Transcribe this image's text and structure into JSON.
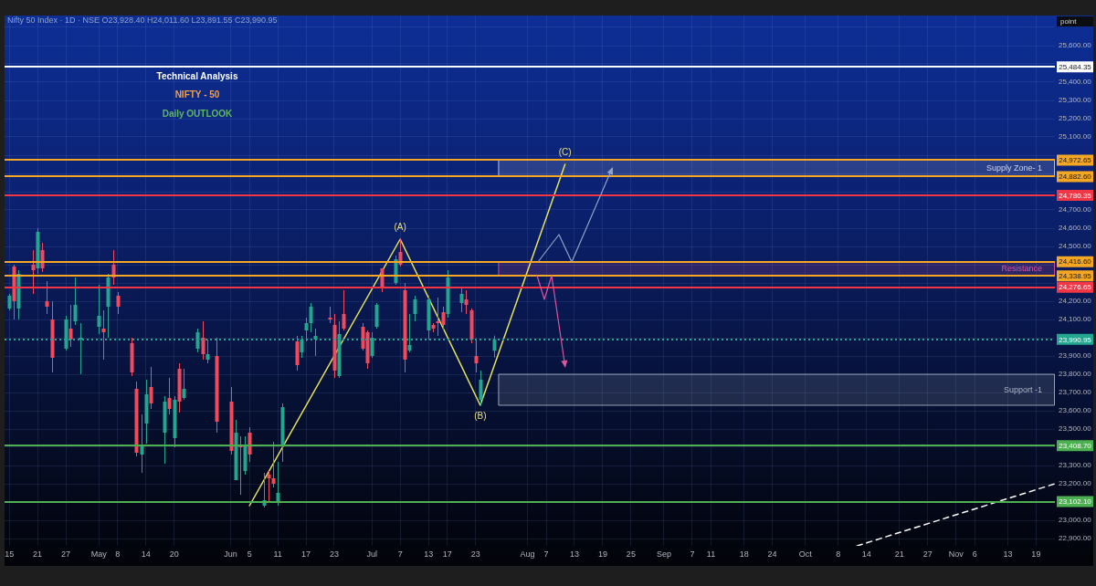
{
  "chart_data": {
    "type": "candlestick",
    "title": "Technical Analysis",
    "subtitle": "NIFTY - 50",
    "ylabel": "point",
    "annotations": [
      "Nifty 50 Index · 1D · NSE O23,928.40 H24,011.60 L23,891.55 C23,990.95",
      "Daily OUTLOOK",
      {
        "text": "(A)",
        "x": "--07-07",
        "y": 24540
      },
      {
        "text": "(B)",
        "x": "--07-24",
        "y": 23630
      },
      {
        "text": "(C)",
        "x": "--08-11",
        "y": 24950
      }
    ],
    "x": [
      "--04-15",
      "--04-16",
      "--04-17",
      "--04-20",
      "--04-21",
      "--04-22",
      "--04-23",
      "--04-24",
      "--04-27",
      "--04-28",
      "--04-29",
      "--04-30",
      "--05-04",
      "--05-05",
      "--05-06",
      "--05-07",
      "--05-08",
      "--05-11",
      "--05-12",
      "--05-13",
      "--05-14",
      "--05-15",
      "--05-18",
      "--05-19",
      "--05-20",
      "--05-21",
      "--05-22",
      "--05-25",
      "--05-26",
      "--05-27",
      "--05-29",
      "--06-01",
      "--06-02",
      "--06-03",
      "--06-04",
      "--06-05",
      "--06-08",
      "--06-09",
      "--06-10",
      "--06-11",
      "--06-12",
      "--06-15",
      "--06-16",
      "--06-17",
      "--06-18",
      "--06-19",
      "--06-22",
      "--06-23",
      "--06-24",
      "--06-25",
      "--06-29",
      "--06-30",
      "--07-01",
      "--07-02",
      "--07-03",
      "--07-06",
      "--07-07",
      "--07-08",
      "--07-09",
      "--07-10",
      "--07-13",
      "--07-14",
      "--07-15",
      "--07-16",
      "--07-17",
      "--07-20",
      "--07-21",
      "--07-22",
      "--07-23",
      "--07-24",
      "--07-27"
    ],
    "ohlc": [
      [
        24160,
        24240,
        24150,
        24230
      ],
      [
        24390,
        24400,
        24100,
        24200
      ],
      [
        24160,
        24370,
        24100,
        24350
      ],
      [
        24400,
        24480,
        24240,
        24370
      ],
      [
        24380,
        24600,
        24350,
        24580
      ],
      [
        24480,
        24520,
        24360,
        24380
      ],
      [
        24200,
        24310,
        24130,
        24170
      ],
      [
        24100,
        24200,
        23810,
        23890
      ],
      [
        23940,
        24120,
        23930,
        24100
      ],
      [
        24050,
        24180,
        23950,
        23990
      ],
      [
        24090,
        24330,
        24070,
        24180
      ],
      [
        23990,
        24080,
        23800,
        24000
      ],
      [
        24060,
        24290,
        24020,
        24120
      ],
      [
        24050,
        24150,
        23880,
        24030
      ],
      [
        24170,
        24350,
        24000,
        24330
      ],
      [
        24400,
        24480,
        24290,
        24330
      ],
      [
        24230,
        24250,
        24130,
        24170
      ],
      [
        23970,
        24000,
        23790,
        23810
      ],
      [
        23720,
        23760,
        23350,
        23370
      ],
      [
        23360,
        23580,
        23260,
        23410
      ],
      [
        23530,
        23770,
        23420,
        23690
      ],
      [
        23730,
        23840,
        23610,
        23640
      ],
      [
        23480,
        23680,
        23310,
        23650
      ],
      [
        23670,
        23780,
        23580,
        23610
      ],
      [
        23450,
        23680,
        23400,
        23660
      ],
      [
        23830,
        23860,
        23590,
        23650
      ],
      [
        23670,
        23830,
        23660,
        23720
      ],
      [
        23940,
        24050,
        23920,
        24030
      ],
      [
        24000,
        24090,
        23880,
        23910
      ],
      [
        23880,
        23990,
        23860,
        23910
      ],
      [
        23900,
        24000,
        23480,
        23540
      ],
      [
        23650,
        23730,
        23360,
        23380
      ],
      [
        23220,
        23550,
        23220,
        23480
      ],
      [
        23410,
        23460,
        23140,
        23400
      ],
      [
        23270,
        23460,
        23250,
        23410
      ],
      [
        23480,
        23510,
        23320,
        23360
      ],
      [
        23080,
        23260,
        23070,
        23110
      ],
      [
        23250,
        23270,
        23100,
        23230
      ],
      [
        23230,
        23430,
        23180,
        23200
      ],
      [
        23100,
        23320,
        23080,
        23150
      ],
      [
        23410,
        23640,
        23320,
        23620
      ],
      [
        23980,
        24010,
        23820,
        23850
      ],
      [
        23920,
        24010,
        23890,
        23990
      ],
      [
        24040,
        24110,
        23980,
        24080
      ],
      [
        24080,
        24190,
        24030,
        24170
      ],
      [
        23990,
        24050,
        23900,
        24010
      ],
      [
        24110,
        24170,
        24080,
        24100
      ],
      [
        24070,
        24130,
        23780,
        23820
      ],
      [
        23790,
        24090,
        23780,
        24020
      ],
      [
        24130,
        24260,
        24040,
        24050
      ],
      [
        24060,
        24080,
        23930,
        23940
      ],
      [
        24030,
        24040,
        23830,
        23860
      ],
      [
        23900,
        24030,
        23890,
        24000
      ],
      [
        24060,
        24190,
        24050,
        24180
      ],
      [
        24380,
        24380,
        24250,
        24270
      ],
      [
        24300,
        24450,
        24290,
        24430
      ],
      [
        24470,
        24540,
        24390,
        24400
      ],
      [
        24260,
        24300,
        23810,
        23880
      ],
      [
        23930,
        24130,
        23920,
        23960
      ],
      [
        24130,
        24230,
        24090,
        24210
      ],
      [
        24040,
        24230,
        23990,
        24210
      ],
      [
        24070,
        24080,
        24030,
        24050
      ],
      [
        24090,
        24220,
        24010,
        24080
      ],
      [
        24140,
        24170,
        24040,
        24070
      ],
      [
        24130,
        24370,
        24110,
        24330
      ],
      [
        24190,
        24270,
        24140,
        24240
      ],
      [
        24210,
        24260,
        24130,
        24180
      ],
      [
        24150,
        24160,
        23970,
        23990
      ],
      [
        23900,
        23990,
        23810,
        23860
      ],
      [
        23660,
        23820,
        23630,
        23770
      ],
      [
        23928.4,
        24011.6,
        23891.55,
        23990.95
      ]
    ],
    "colors": [
      "#22a68f",
      "#f2495c",
      "#22a68f",
      "#f2495c",
      "#22a68f",
      "#f2495c",
      "#f2495c",
      "#f2495c",
      "#22a68f",
      "#f2495c",
      "#22a68f",
      "#22a68f",
      "#22a68f",
      "#f2495c",
      "#22a68f",
      "#f2495c",
      "#f2495c",
      "#f2495c",
      "#f2495c",
      "#22a68f",
      "#22a68f",
      "#f2495c",
      "#22a68f",
      "#f2495c",
      "#22a68f",
      "#f2495c",
      "#22a68f",
      "#22a68f",
      "#f2495c",
      "#22a68f",
      "#f2495c",
      "#f2495c",
      "#22a68f",
      "#f2495c",
      "#22a68f",
      "#f2495c",
      "#22a68f",
      "#f2495c",
      "#f2495c",
      "#22a68f",
      "#22a68f",
      "#f2495c",
      "#22a68f",
      "#22a68f",
      "#22a68f",
      "#22a68f",
      "#f2495c",
      "#f2495c",
      "#22a68f",
      "#f2495c",
      "#f2495c",
      "#f2495c",
      "#22a68f",
      "#22a68f",
      "#f2495c",
      "#22a68f",
      "#f2495c",
      "#f2495c",
      "#22a68f",
      "#22a68f",
      "#22a68f",
      "#f2495c",
      "#f2495c",
      "#f2495c",
      "#22a68f",
      "#22a68f",
      "#f2495c",
      "#f2495c",
      "#f2495c",
      "#22a68f",
      "#22a68f"
    ],
    "series": [
      {
        "type": "line",
        "color": "#e6e35a",
        "x": [
          "--06-05",
          "--07-07",
          "--07-24",
          "--08-11"
        ],
        "values": [
          23080,
          24540,
          23630,
          24950
        ]
      },
      {
        "type": "line",
        "color": "#ffffff",
        "line_style": "dashed",
        "x": [
          "--10-12",
          "--11-23"
        ],
        "values": [
          22860,
          23200
        ]
      }
    ],
    "ref_lines": [
      {
        "axis": "y",
        "value": 25484.35,
        "label": "25,484.35",
        "color": "#ffffff"
      },
      {
        "axis": "y",
        "value": 24972.65,
        "label": "24,972.65",
        "color": "#f5a623"
      },
      {
        "axis": "y",
        "value": 24882.6,
        "label": "24,882.60",
        "color": "#f5a623"
      },
      {
        "axis": "y",
        "value": 24780.35,
        "label": "24,780.35",
        "color": "#f23645"
      },
      {
        "axis": "y",
        "value": 24416.6,
        "label": "24,416.60",
        "color": "#f5a623"
      },
      {
        "axis": "y",
        "value": 24338.95,
        "label": "24,338.95",
        "color": "#f5a623"
      },
      {
        "axis": "y",
        "value": 24276.65,
        "label": "24,276.65",
        "color": "#f23645"
      },
      {
        "axis": "y",
        "value": 23990.95,
        "label": "23,990.95",
        "color": "#22a68f",
        "line_style": "dotted"
      },
      {
        "axis": "y",
        "value": 23408.7,
        "label": "23,408.70",
        "color": "#4caf50"
      },
      {
        "axis": "y",
        "value": 23102.1,
        "label": "23,102.10",
        "color": "#4caf50"
      }
    ],
    "bands": [
      {
        "axis": "y",
        "from": 24882.6,
        "to": 24972.65,
        "label": "Supply Zone- 1",
        "color": "#c9d3ea"
      },
      {
        "axis": "y",
        "from": 24338.95,
        "to": 24416.6,
        "label": "Resistance",
        "color": "#e0559f"
      },
      {
        "axis": "y",
        "from": 23630,
        "to": 23800,
        "label": "Support -1",
        "color": "#aab4c8"
      }
    ],
    "xlim": [
      "--04-14",
      "--11-23"
    ],
    "xticks": [
      {
        "value": "--04-15",
        "label": "15"
      },
      {
        "value": "--04-21",
        "label": "21"
      },
      {
        "value": "--04-27",
        "label": "27"
      },
      {
        "value": "--05-04",
        "label": "May"
      },
      {
        "value": "--05-08",
        "label": "8"
      },
      {
        "value": "--05-14",
        "label": "14"
      },
      {
        "value": "--05-20",
        "label": "20"
      },
      {
        "value": "--06-01",
        "label": "Jun"
      },
      {
        "value": "--06-05",
        "label": "5"
      },
      {
        "value": "--06-11",
        "label": "11"
      },
      {
        "value": "--06-17",
        "label": "17"
      },
      {
        "value": "--06-23",
        "label": "23"
      },
      {
        "value": "--07-01",
        "label": "Jul"
      },
      {
        "value": "--07-07",
        "label": "7"
      },
      {
        "value": "--07-13",
        "label": "13"
      },
      {
        "value": "--07-17",
        "label": "17"
      },
      {
        "value": "--07-23",
        "label": "23"
      },
      {
        "value": "--08-03",
        "label": "Aug"
      },
      {
        "value": "--08-07",
        "label": "7"
      },
      {
        "value": "--08-13",
        "label": "13"
      },
      {
        "value": "--08-19",
        "label": "19"
      },
      {
        "value": "--08-25",
        "label": "25"
      },
      {
        "value": "--09-01",
        "label": "Sep"
      },
      {
        "value": "--09-07",
        "label": "7"
      },
      {
        "value": "--09-11",
        "label": "11"
      },
      {
        "value": "--09-18",
        "label": "18"
      },
      {
        "value": "--09-24",
        "label": "24"
      },
      {
        "value": "--10-01",
        "label": "Oct"
      },
      {
        "value": "--10-08",
        "label": "8"
      },
      {
        "value": "--10-14",
        "label": "14"
      },
      {
        "value": "--10-21",
        "label": "21"
      },
      {
        "value": "--10-27",
        "label": "27"
      },
      {
        "value": "--11-02",
        "label": "Nov"
      },
      {
        "value": "--11-06",
        "label": "6"
      },
      {
        "value": "--11-13",
        "label": "13"
      },
      {
        "value": "--11-19",
        "label": "19"
      }
    ],
    "ylim": [
      22860,
      25765
    ],
    "yticks": [
      {
        "value": 22900,
        "label": "22,900.00"
      },
      {
        "value": 23000,
        "label": "23,000.00"
      },
      {
        "value": 23100,
        "label": null
      },
      {
        "value": 23200,
        "label": "23,200.00"
      },
      {
        "value": 23300,
        "label": "23,300.00"
      },
      {
        "value": 23400,
        "label": null
      },
      {
        "value": 23500,
        "label": "23,500.00"
      },
      {
        "value": 23600,
        "label": "23,600.00"
      },
      {
        "value": 23700,
        "label": "23,700.00"
      },
      {
        "value": 23800,
        "label": "23,800.00"
      },
      {
        "value": 23900,
        "label": "23,900.00"
      },
      {
        "value": 24000,
        "label": null
      },
      {
        "value": 24100,
        "label": "24,100.00"
      },
      {
        "value": 24200,
        "label": "24,200.00"
      },
      {
        "value": 24300,
        "label": null
      },
      {
        "value": 24400,
        "label": null
      },
      {
        "value": 24500,
        "label": "24,500.00"
      },
      {
        "value": 24600,
        "label": "24,600.00"
      },
      {
        "value": 24700,
        "label": "24,700.00"
      },
      {
        "value": 24800,
        "label": null
      },
      {
        "value": 24900,
        "label": null
      },
      {
        "value": 25000,
        "label": null
      },
      {
        "value": 25100,
        "label": "25,100.00"
      },
      {
        "value": 25200,
        "label": "25,200.00"
      },
      {
        "value": 25300,
        "label": "25,300.00"
      },
      {
        "value": 25400,
        "label": "25,400.00"
      },
      {
        "value": 25500,
        "label": null
      },
      {
        "value": 25600,
        "label": "25,600.00"
      },
      {
        "value": 25700,
        "label": null
      }
    ],
    "grid": true,
    "marker": "none"
  }
}
